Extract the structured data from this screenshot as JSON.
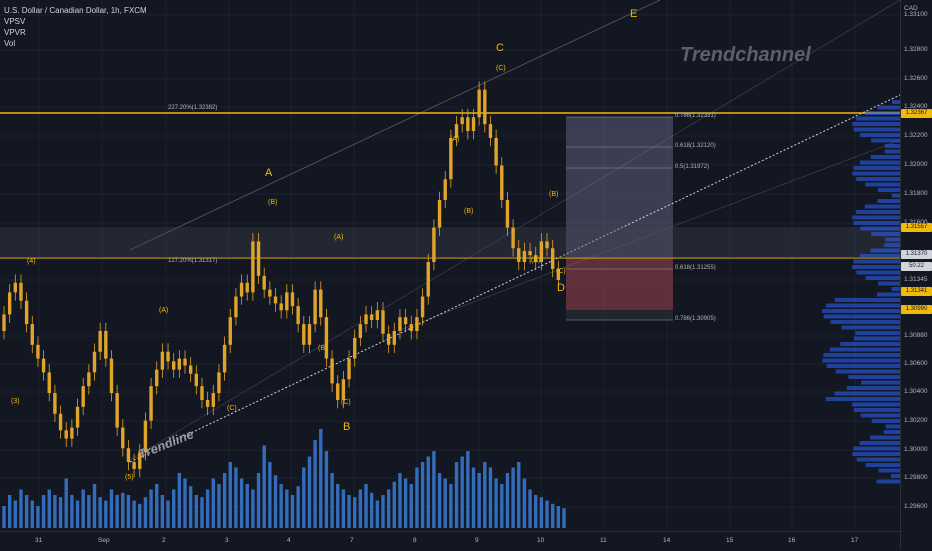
{
  "header": {
    "symbol_line": "U.S. Dollar / Canadian Dollar, 1h, FXCM",
    "indicators": [
      "VPSV",
      "VPVR",
      "Vol"
    ]
  },
  "currency_label": "CAD",
  "watermark": "Trendchannel",
  "trendline_label": "Trendline",
  "colors": {
    "background": "#131722",
    "candle": "#e0a42a",
    "volume": "#3a7bd5",
    "level": "#f0b90b",
    "short_zone_top": "#5d5f7a",
    "short_zone_bottom": "#7a3a45"
  },
  "chart_data": {
    "type": "candlestick",
    "y_axis": {
      "ticks": [
        "1.33100",
        "1.32800",
        "1.32600",
        "1.32400",
        "1.32200",
        "1.32000",
        "1.31800",
        "1.31600",
        "1.31345",
        "1.30880",
        "1.30600",
        "1.30400",
        "1.30200",
        "1.30000",
        "1.29800",
        "1.29600"
      ],
      "ylim": [
        1.2955,
        1.334
      ]
    },
    "x_axis": {
      "ticks": [
        "31",
        "Sep",
        "2",
        "3",
        "4",
        "7",
        "8",
        "9",
        "10",
        "11",
        "14",
        "15",
        "16",
        "17"
      ]
    },
    "price_tags": [
      {
        "text": "1.32367",
        "color": "#f0b90b",
        "fg": "#131722"
      },
      {
        "text": "1.31557",
        "color": "#f0b90b",
        "fg": "#131722"
      },
      {
        "text": "1.31370",
        "color": "#d1d4dc",
        "fg": "#131722"
      },
      {
        "text": "50:22",
        "color": "#d1d4dc",
        "fg": "#131722"
      },
      {
        "text": "1.31341",
        "color": "#f0b90b",
        "fg": "#131722"
      },
      {
        "text": "1.30990",
        "color": "#f0b90b",
        "fg": "#131722"
      }
    ],
    "horizontal_levels": [
      {
        "label": "227.20%(1.32382)"
      },
      {
        "label": "127.20%(1.31317)"
      }
    ],
    "fib_labels": [
      "0.786(1.32331)",
      "0.618(1.32120)",
      "0.5(1.31972)",
      "0.618(1.31255)",
      "0.786(1.30905)"
    ],
    "wave_labels": {
      "major": [
        "A",
        "B",
        "C",
        "D",
        "E"
      ],
      "minor": [
        "(3)",
        "(4)",
        "(5)",
        "(A)",
        "(B)",
        "(C)",
        "(A)",
        "(B)",
        "(C)",
        "(A)",
        "(B)",
        "(C)",
        "(A)",
        "(B)",
        "(C)"
      ]
    },
    "price_path": [
      1.31,
      1.3112,
      1.3128,
      1.3135,
      1.3122,
      1.3105,
      1.309,
      1.308,
      1.307,
      1.3055,
      1.304,
      1.3028,
      1.3022,
      1.303,
      1.3045,
      1.306,
      1.307,
      1.3085,
      1.31,
      1.308,
      1.3055,
      1.303,
      1.3015,
      1.3005,
      1.3,
      1.3012,
      1.3035,
      1.306,
      1.3072,
      1.3085,
      1.3078,
      1.3072,
      1.308,
      1.3075,
      1.3069,
      1.306,
      1.305,
      1.3045,
      1.3055,
      1.307,
      1.309,
      1.311,
      1.3125,
      1.3135,
      1.3128,
      1.3165,
      1.314,
      1.313,
      1.3125,
      1.312,
      1.3115,
      1.3128,
      1.3118,
      1.3105,
      1.309,
      1.3105,
      1.313,
      1.311,
      1.308,
      1.3062,
      1.305,
      1.3065,
      1.308,
      1.3095,
      1.3105,
      1.3112,
      1.3108,
      1.3115,
      1.3098,
      1.309,
      1.31,
      1.311,
      1.3105,
      1.31,
      1.311,
      1.3125,
      1.315,
      1.3175,
      1.3195,
      1.321,
      1.324,
      1.325,
      1.3255,
      1.3245,
      1.3255,
      1.3275,
      1.325,
      1.324,
      1.322,
      1.3195,
      1.3175,
      1.316,
      1.315,
      1.3158,
      1.3155,
      1.315,
      1.3165,
      1.316,
      1.3145,
      1.3137
    ],
    "volume": [
      0.2,
      0.3,
      0.25,
      0.35,
      0.3,
      0.25,
      0.2,
      0.3,
      0.35,
      0.3,
      0.28,
      0.45,
      0.3,
      0.25,
      0.35,
      0.3,
      0.4,
      0.28,
      0.25,
      0.35,
      0.3,
      0.32,
      0.3,
      0.25,
      0.22,
      0.28,
      0.35,
      0.4,
      0.3,
      0.25,
      0.35,
      0.5,
      0.45,
      0.38,
      0.3,
      0.28,
      0.35,
      0.45,
      0.4,
      0.5,
      0.6,
      0.55,
      0.45,
      0.4,
      0.35,
      0.5,
      0.75,
      0.6,
      0.48,
      0.4,
      0.35,
      0.3,
      0.38,
      0.55,
      0.65,
      0.8,
      0.9,
      0.7,
      0.5,
      0.4,
      0.35,
      0.3,
      0.28,
      0.35,
      0.4,
      0.32,
      0.25,
      0.3,
      0.35,
      0.42,
      0.5,
      0.45,
      0.4,
      0.55,
      0.6,
      0.65,
      0.7,
      0.5,
      0.45,
      0.4,
      0.6,
      0.65,
      0.7,
      0.55,
      0.5,
      0.6,
      0.55,
      0.45,
      0.4,
      0.5,
      0.55,
      0.6,
      0.45,
      0.35,
      0.3,
      0.28,
      0.25,
      0.22,
      0.2,
      0.18
    ]
  }
}
